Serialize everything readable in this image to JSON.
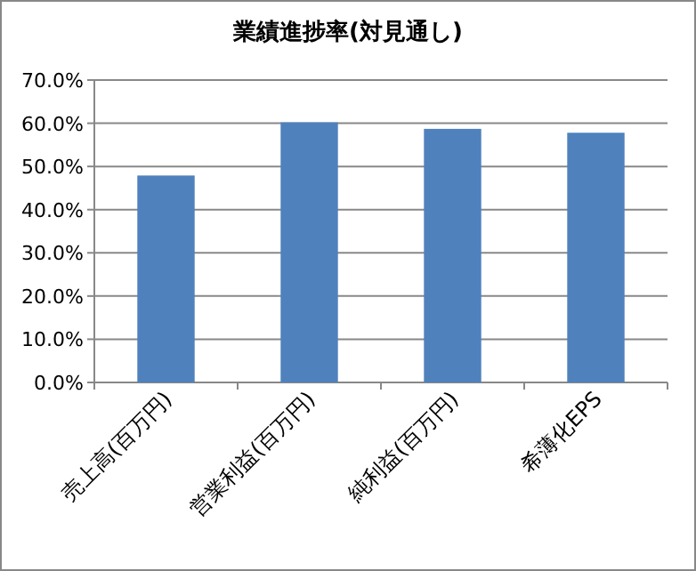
{
  "chart_data": {
    "type": "bar",
    "title": "業績進捗率(対見通し)",
    "categories": [
      "売上高(百万円)",
      "営業利益(百万円)",
      "純利益(百万円)",
      "希薄化EPS"
    ],
    "values": [
      47.9,
      60.2,
      58.7,
      57.8
    ],
    "color": "#4f81bd",
    "ylim": [
      0,
      70
    ],
    "yticks": [
      {
        "value": 0,
        "label": "0.0%"
      },
      {
        "value": 10,
        "label": "10.0%"
      },
      {
        "value": 20,
        "label": "20.0%"
      },
      {
        "value": 30,
        "label": "30.0%"
      },
      {
        "value": 40,
        "label": "40.0%"
      },
      {
        "value": 50,
        "label": "50.0%"
      },
      {
        "value": 60,
        "label": "60.0%"
      },
      {
        "value": 70,
        "label": "70.0%"
      }
    ],
    "grid": "y"
  }
}
